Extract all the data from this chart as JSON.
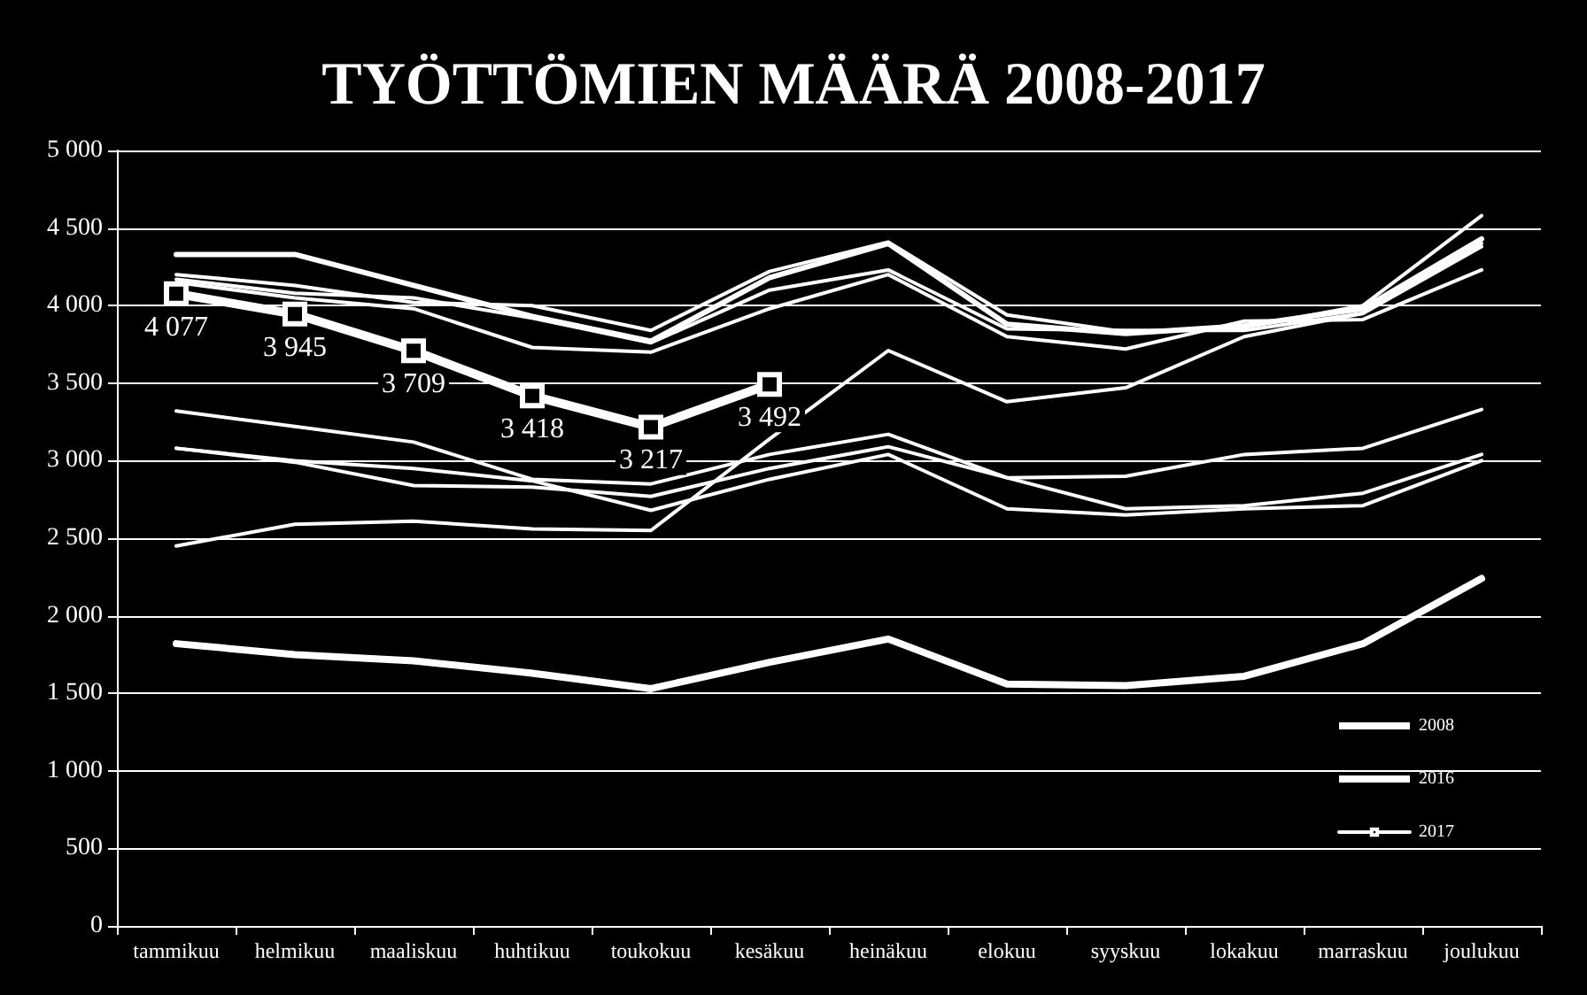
{
  "chart_data": {
    "type": "line",
    "title": "TYÖTTÖMIEN MÄÄRÄ 2008-2017",
    "categories": [
      "tammikuu",
      "helmikuu",
      "maaliskuu",
      "huhtikuu",
      "toukokuu",
      "kesäkuu",
      "heinäkuu",
      "elokuu",
      "syyskuu",
      "lokakuu",
      "marraskuu",
      "joulukuu"
    ],
    "ylim": [
      0,
      5000
    ],
    "yticks": [
      0,
      {
        "value": 500,
        "label": "500"
      },
      {
        "value": 1000,
        "label": "1 000"
      },
      {
        "value": 1500,
        "label": "1 500"
      },
      {
        "value": 2000,
        "label": "2 000"
      },
      {
        "value": 2500,
        "label": "2 500"
      },
      {
        "value": 3000,
        "label": "3 000"
      },
      {
        "value": 3500,
        "label": "3 500"
      },
      {
        "value": 4000,
        "label": "4 000"
      },
      {
        "value": 4500,
        "label": "4 500"
      },
      {
        "value": 5000,
        "label": "5 000"
      }
    ],
    "grid": "y",
    "legend": "bottom right",
    "marker": "none",
    "line_style": "solid",
    "series": [
      {
        "name": "2008",
        "color": "#ffffff",
        "values": [
          1820,
          1750,
          1710,
          1630,
          1530,
          1700,
          1850,
          1560,
          1550,
          1610,
          1820,
          2240
        ]
      },
      {
        "name": "2016",
        "color": "#ffffff",
        "values": [
          4330,
          4330,
          4130,
          3930,
          3770,
          4180,
          4400,
          3880,
          3820,
          3870,
          3980,
          4430
        ]
      },
      {
        "color": "#ffffff",
        "values": [
          4200,
          4130,
          4020,
          4000,
          3840,
          4220,
          4410,
          3940,
          3830,
          3860,
          4000,
          4580
        ]
      },
      {
        "color": "#ffffff",
        "values": [
          4170,
          4080,
          4050,
          3920,
          3760,
          4100,
          4230,
          3850,
          3840,
          3840,
          3950,
          4380
        ]
      },
      {
        "color": "#ffffff",
        "values": [
          4150,
          4050,
          3980,
          3730,
          3700,
          3980,
          4200,
          3800,
          3720,
          3900,
          3910,
          4230
        ]
      },
      {
        "color": "#ffffff",
        "values": [
          2450,
          2590,
          2610,
          2560,
          2550,
          3140,
          3710,
          3380,
          3470,
          3800,
          3950,
          4400
        ]
      },
      {
        "color": "#ffffff",
        "values": [
          3320,
          3220,
          3120,
          2880,
          2850,
          3040,
          3170,
          2890,
          2900,
          3040,
          3080,
          3330
        ]
      },
      {
        "color": "#ffffff",
        "values": [
          3080,
          2990,
          2840,
          2830,
          2770,
          2950,
          3090,
          2890,
          2690,
          2710,
          2790,
          3040
        ]
      },
      {
        "color": "#ffffff",
        "values": [
          3080,
          3000,
          2950,
          2870,
          2680,
          2880,
          3040,
          2690,
          2650,
          2690,
          2710,
          3000
        ]
      },
      {
        "name": "2017",
        "color": "#ffffff",
        "marker": "square",
        "values": [
          4077,
          3945,
          3709,
          3418,
          3217,
          3492,
          null,
          null,
          null,
          null,
          null,
          null
        ],
        "value_labels": [
          "4 077",
          "3 945",
          "3 709",
          "3 418",
          "3 217",
          "3 492",
          null,
          null,
          null,
          null,
          null,
          null
        ]
      }
    ]
  }
}
